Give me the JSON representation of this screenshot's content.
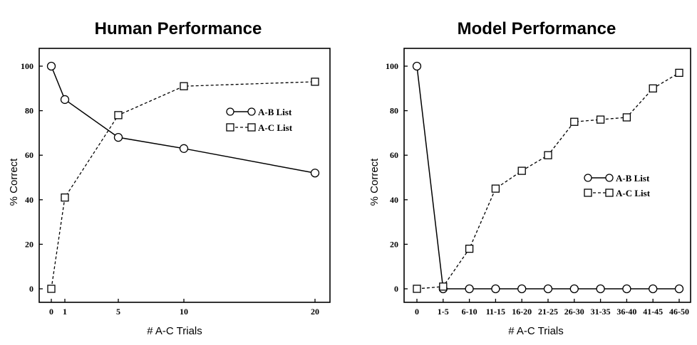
{
  "chart_data": [
    {
      "type": "line",
      "title": "Human Performance",
      "xlabel": "# A-C Trials",
      "ylabel": "% Correct",
      "x": [
        0,
        1,
        5,
        10,
        20
      ],
      "x_tick_labels": [
        "0",
        "1",
        "5",
        "10",
        "20"
      ],
      "y_ticks": [
        "0",
        "20",
        "40",
        "60",
        "80",
        "100"
      ],
      "ylim": [
        0,
        100
      ],
      "legend_position": "right",
      "series": [
        {
          "name": "A-B List",
          "marker": "circle",
          "line": "solid",
          "values": [
            100,
            85,
            68,
            63,
            52
          ]
        },
        {
          "name": "A-C List",
          "marker": "square",
          "line": "dashed",
          "values": [
            0,
            41,
            78,
            91,
            93
          ]
        }
      ]
    },
    {
      "type": "line",
      "title": "Model Performance",
      "xlabel": "# A-C Trials",
      "ylabel": "% Correct",
      "categories": [
        "0",
        "1-5",
        "6-10",
        "11-15",
        "16-20",
        "21-25",
        "26-30",
        "31-35",
        "36-40",
        "41-45",
        "46-50"
      ],
      "y_ticks": [
        "0",
        "20",
        "40",
        "60",
        "80",
        "100"
      ],
      "ylim": [
        0,
        100
      ],
      "legend_position": "right",
      "series": [
        {
          "name": "A-B List",
          "marker": "circle",
          "line": "solid",
          "values": [
            100,
            0,
            0,
            0,
            0,
            0,
            0,
            0,
            0,
            0,
            0
          ]
        },
        {
          "name": "A-C List",
          "marker": "square",
          "line": "dashed",
          "values": [
            0,
            1,
            18,
            45,
            53,
            60,
            75,
            76,
            77,
            90,
            97
          ]
        }
      ]
    }
  ]
}
